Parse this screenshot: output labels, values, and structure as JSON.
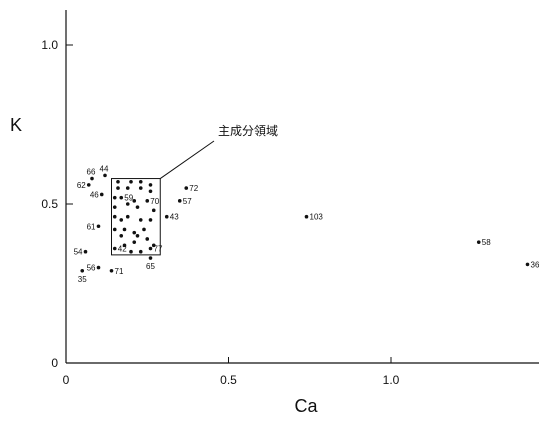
{
  "chart_data": {
    "type": "scatter",
    "xlabel": "Ca",
    "ylabel": "K",
    "xlim": [
      0,
      1.45
    ],
    "ylim": [
      0,
      1.1
    ],
    "x_ticks": [
      {
        "value": 0,
        "label": "0"
      },
      {
        "value": 0.5,
        "label": "0.5"
      },
      {
        "value": 1.0,
        "label": "1.0"
      }
    ],
    "y_ticks": [
      {
        "value": 0,
        "label": "0"
      },
      {
        "value": 0.5,
        "label": "0.5"
      },
      {
        "value": 1.0,
        "label": "1.0"
      }
    ],
    "grid": false,
    "annotation": {
      "text": "主成分領域",
      "box": {
        "x0": 0.14,
        "x1": 0.29,
        "y0": 0.34,
        "y1": 0.58
      }
    },
    "points": [
      {
        "label": "66",
        "x": 0.08,
        "y": 0.58
      },
      {
        "label": "44",
        "x": 0.12,
        "y": 0.59
      },
      {
        "label": "62",
        "x": 0.07,
        "y": 0.56
      },
      {
        "label": "46",
        "x": 0.11,
        "y": 0.53
      },
      {
        "label": "59",
        "x": 0.17,
        "y": 0.52
      },
      {
        "label": "70",
        "x": 0.25,
        "y": 0.51
      },
      {
        "label": "72",
        "x": 0.37,
        "y": 0.55
      },
      {
        "label": "57",
        "x": 0.35,
        "y": 0.51
      },
      {
        "label": "43",
        "x": 0.31,
        "y": 0.46
      },
      {
        "label": "61",
        "x": 0.1,
        "y": 0.43
      },
      {
        "label": "54",
        "x": 0.06,
        "y": 0.35
      },
      {
        "label": "42",
        "x": 0.15,
        "y": 0.36
      },
      {
        "label": "77",
        "x": 0.26,
        "y": 0.36
      },
      {
        "label": "65",
        "x": 0.26,
        "y": 0.33
      },
      {
        "label": "35",
        "x": 0.05,
        "y": 0.29
      },
      {
        "label": "56",
        "x": 0.1,
        "y": 0.3
      },
      {
        "label": "71",
        "x": 0.14,
        "y": 0.29
      },
      {
        "label": "103",
        "x": 0.74,
        "y": 0.46
      },
      {
        "label": "58",
        "x": 1.27,
        "y": 0.38
      },
      {
        "label": "36",
        "x": 1.42,
        "y": 0.31
      },
      {
        "label": "",
        "x": 0.16,
        "y": 0.57
      },
      {
        "label": "",
        "x": 0.2,
        "y": 0.57
      },
      {
        "label": "",
        "x": 0.23,
        "y": 0.57
      },
      {
        "label": "",
        "x": 0.26,
        "y": 0.56
      },
      {
        "label": "",
        "x": 0.16,
        "y": 0.55
      },
      {
        "label": "",
        "x": 0.19,
        "y": 0.55
      },
      {
        "label": "",
        "x": 0.23,
        "y": 0.55
      },
      {
        "label": "",
        "x": 0.26,
        "y": 0.54
      },
      {
        "label": "",
        "x": 0.15,
        "y": 0.52
      },
      {
        "label": "",
        "x": 0.21,
        "y": 0.51
      },
      {
        "label": "",
        "x": 0.15,
        "y": 0.49
      },
      {
        "label": "",
        "x": 0.19,
        "y": 0.5
      },
      {
        "label": "",
        "x": 0.22,
        "y": 0.49
      },
      {
        "label": "",
        "x": 0.27,
        "y": 0.48
      },
      {
        "label": "",
        "x": 0.15,
        "y": 0.46
      },
      {
        "label": "",
        "x": 0.17,
        "y": 0.45
      },
      {
        "label": "",
        "x": 0.19,
        "y": 0.46
      },
      {
        "label": "",
        "x": 0.23,
        "y": 0.45
      },
      {
        "label": "",
        "x": 0.26,
        "y": 0.45
      },
      {
        "label": "",
        "x": 0.15,
        "y": 0.42
      },
      {
        "label": "",
        "x": 0.18,
        "y": 0.42
      },
      {
        "label": "",
        "x": 0.21,
        "y": 0.41
      },
      {
        "label": "",
        "x": 0.24,
        "y": 0.42
      },
      {
        "label": "",
        "x": 0.17,
        "y": 0.4
      },
      {
        "label": "",
        "x": 0.22,
        "y": 0.4
      },
      {
        "label": "",
        "x": 0.25,
        "y": 0.39
      },
      {
        "label": "",
        "x": 0.18,
        "y": 0.37
      },
      {
        "label": "",
        "x": 0.21,
        "y": 0.38
      },
      {
        "label": "",
        "x": 0.2,
        "y": 0.35
      },
      {
        "label": "",
        "x": 0.23,
        "y": 0.35
      },
      {
        "label": "",
        "x": 0.27,
        "y": 0.37
      }
    ]
  }
}
